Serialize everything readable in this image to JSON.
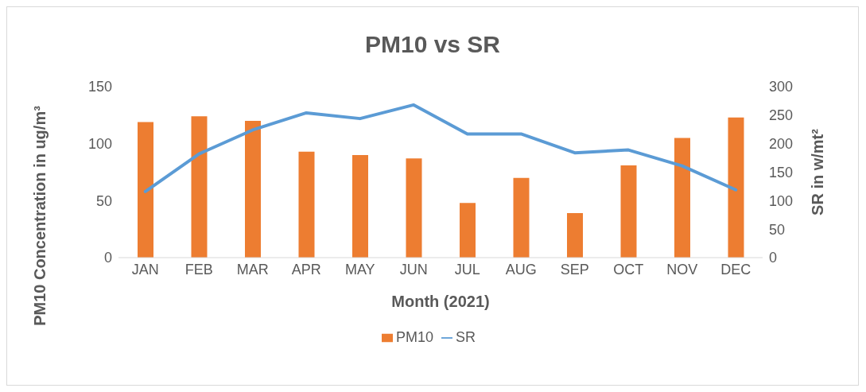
{
  "chart_data": {
    "type": "bar",
    "title": "PM10 vs SR",
    "xlabel": "Month (2021)",
    "ylabel": "PM10 Concentration in ug/m³",
    "y2label": "SR in w/mt²",
    "categories": [
      "JAN",
      "FEB",
      "MAR",
      "APR",
      "MAY",
      "JUN",
      "JUL",
      "AUG",
      "SEP",
      "OCT",
      "NOV",
      "DEC"
    ],
    "series": [
      {
        "name": "PM10",
        "color": "#ed7d31",
        "values": [
          119,
          124,
          120,
          93,
          90,
          87,
          48,
          70,
          39,
          81,
          105,
          123
        ]
      },
      {
        "name": "SR",
        "type": "line",
        "axis": "y2",
        "color": "#5b9bd5",
        "values": [
          116,
          182,
          224,
          254,
          244,
          268,
          217,
          217,
          184,
          189,
          161,
          119
        ]
      }
    ],
    "ylim": [
      0,
      150
    ],
    "yticks": [
      0,
      50,
      100,
      150
    ],
    "y2lim": [
      0,
      300
    ],
    "y2ticks": [
      0,
      50,
      100,
      150,
      200,
      250,
      300
    ],
    "grid": false,
    "legend": "bottom",
    "marker": "none",
    "line_style": "solid"
  }
}
